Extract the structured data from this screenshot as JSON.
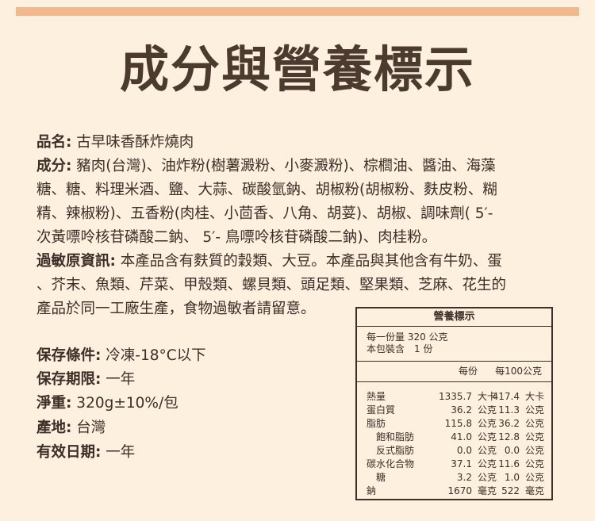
{
  "title": "成分與營養標示",
  "product": {
    "label": "品名:",
    "value": "古早味香酥炸燒肉"
  },
  "ingredients": {
    "label": "成分:",
    "lines": [
      "豬肉(台灣)、油炸粉(樹薯澱粉、小麥澱粉)、棕櫚油、醬油、海藻",
      "糖、糖、料理米酒、鹽、大蒜、碳酸氫鈉、胡椒粉(胡椒粉、麩皮粉、糊",
      "精、辣椒粉)、五香粉(肉桂、小茴香、八角、胡荽)、胡椒、調味劑( 5′-",
      "次黃嘌呤核苷磷酸二鈉、 5′- 鳥嘌呤核苷磷酸二鈉)、肉桂粉。"
    ]
  },
  "allergen": {
    "label": "過敏原資訊:",
    "lines": [
      "本產品含有麩質的穀類、大豆。本產品與其他含有牛奶、蛋",
      "、芥末、魚類、芹菜、甲殼類、螺貝類、頭足類、堅果類、芝麻、花生的",
      "產品於同一工廠生產，食物過敏者請留意。"
    ]
  },
  "info": [
    {
      "label": "保存條件:",
      "value": "冷凍-18°C以下"
    },
    {
      "label": "保存期限:",
      "value": "一年"
    },
    {
      "label": "淨重:",
      "value": "320g±10%/包"
    },
    {
      "label": "產地:",
      "value": "台灣"
    },
    {
      "label": "有效日期:",
      "value": "一年"
    }
  ],
  "nutrition": {
    "title": "營養標示",
    "serving_size": "每一份量 320 公克",
    "servings": "本包裝含　1 份",
    "col_per_serving": "每份",
    "col_per_100g": "每100公克",
    "rows": [
      {
        "name": "熱量",
        "v1": "1335.7",
        "u1": "大卡",
        "v2": "417.4",
        "u2": "大卡"
      },
      {
        "name": "蛋白質",
        "v1": "36.2",
        "u1": "公克",
        "v2": "11.3",
        "u2": "公克"
      },
      {
        "name": "脂肪",
        "v1": "115.8",
        "u1": "公克",
        "v2": "36.2",
        "u2": "公克"
      },
      {
        "name": "　飽和脂肪",
        "v1": "41.0",
        "u1": "公克",
        "v2": "12.8",
        "u2": "公克"
      },
      {
        "name": "　反式脂肪",
        "v1": "0.0",
        "u1": "公克",
        "v2": "0.0",
        "u2": "公克"
      },
      {
        "name": "碳水化合物",
        "v1": "37.1",
        "u1": "公克",
        "v2": "11.6",
        "u2": "公克"
      },
      {
        "name": "　糖",
        "v1": "3.2",
        "u1": "公克",
        "v2": "1.0",
        "u2": "公克"
      },
      {
        "name": "鈉",
        "v1": "1670",
        "u1": "毫克",
        "v2": "522",
        "u2": "毫克"
      }
    ]
  }
}
